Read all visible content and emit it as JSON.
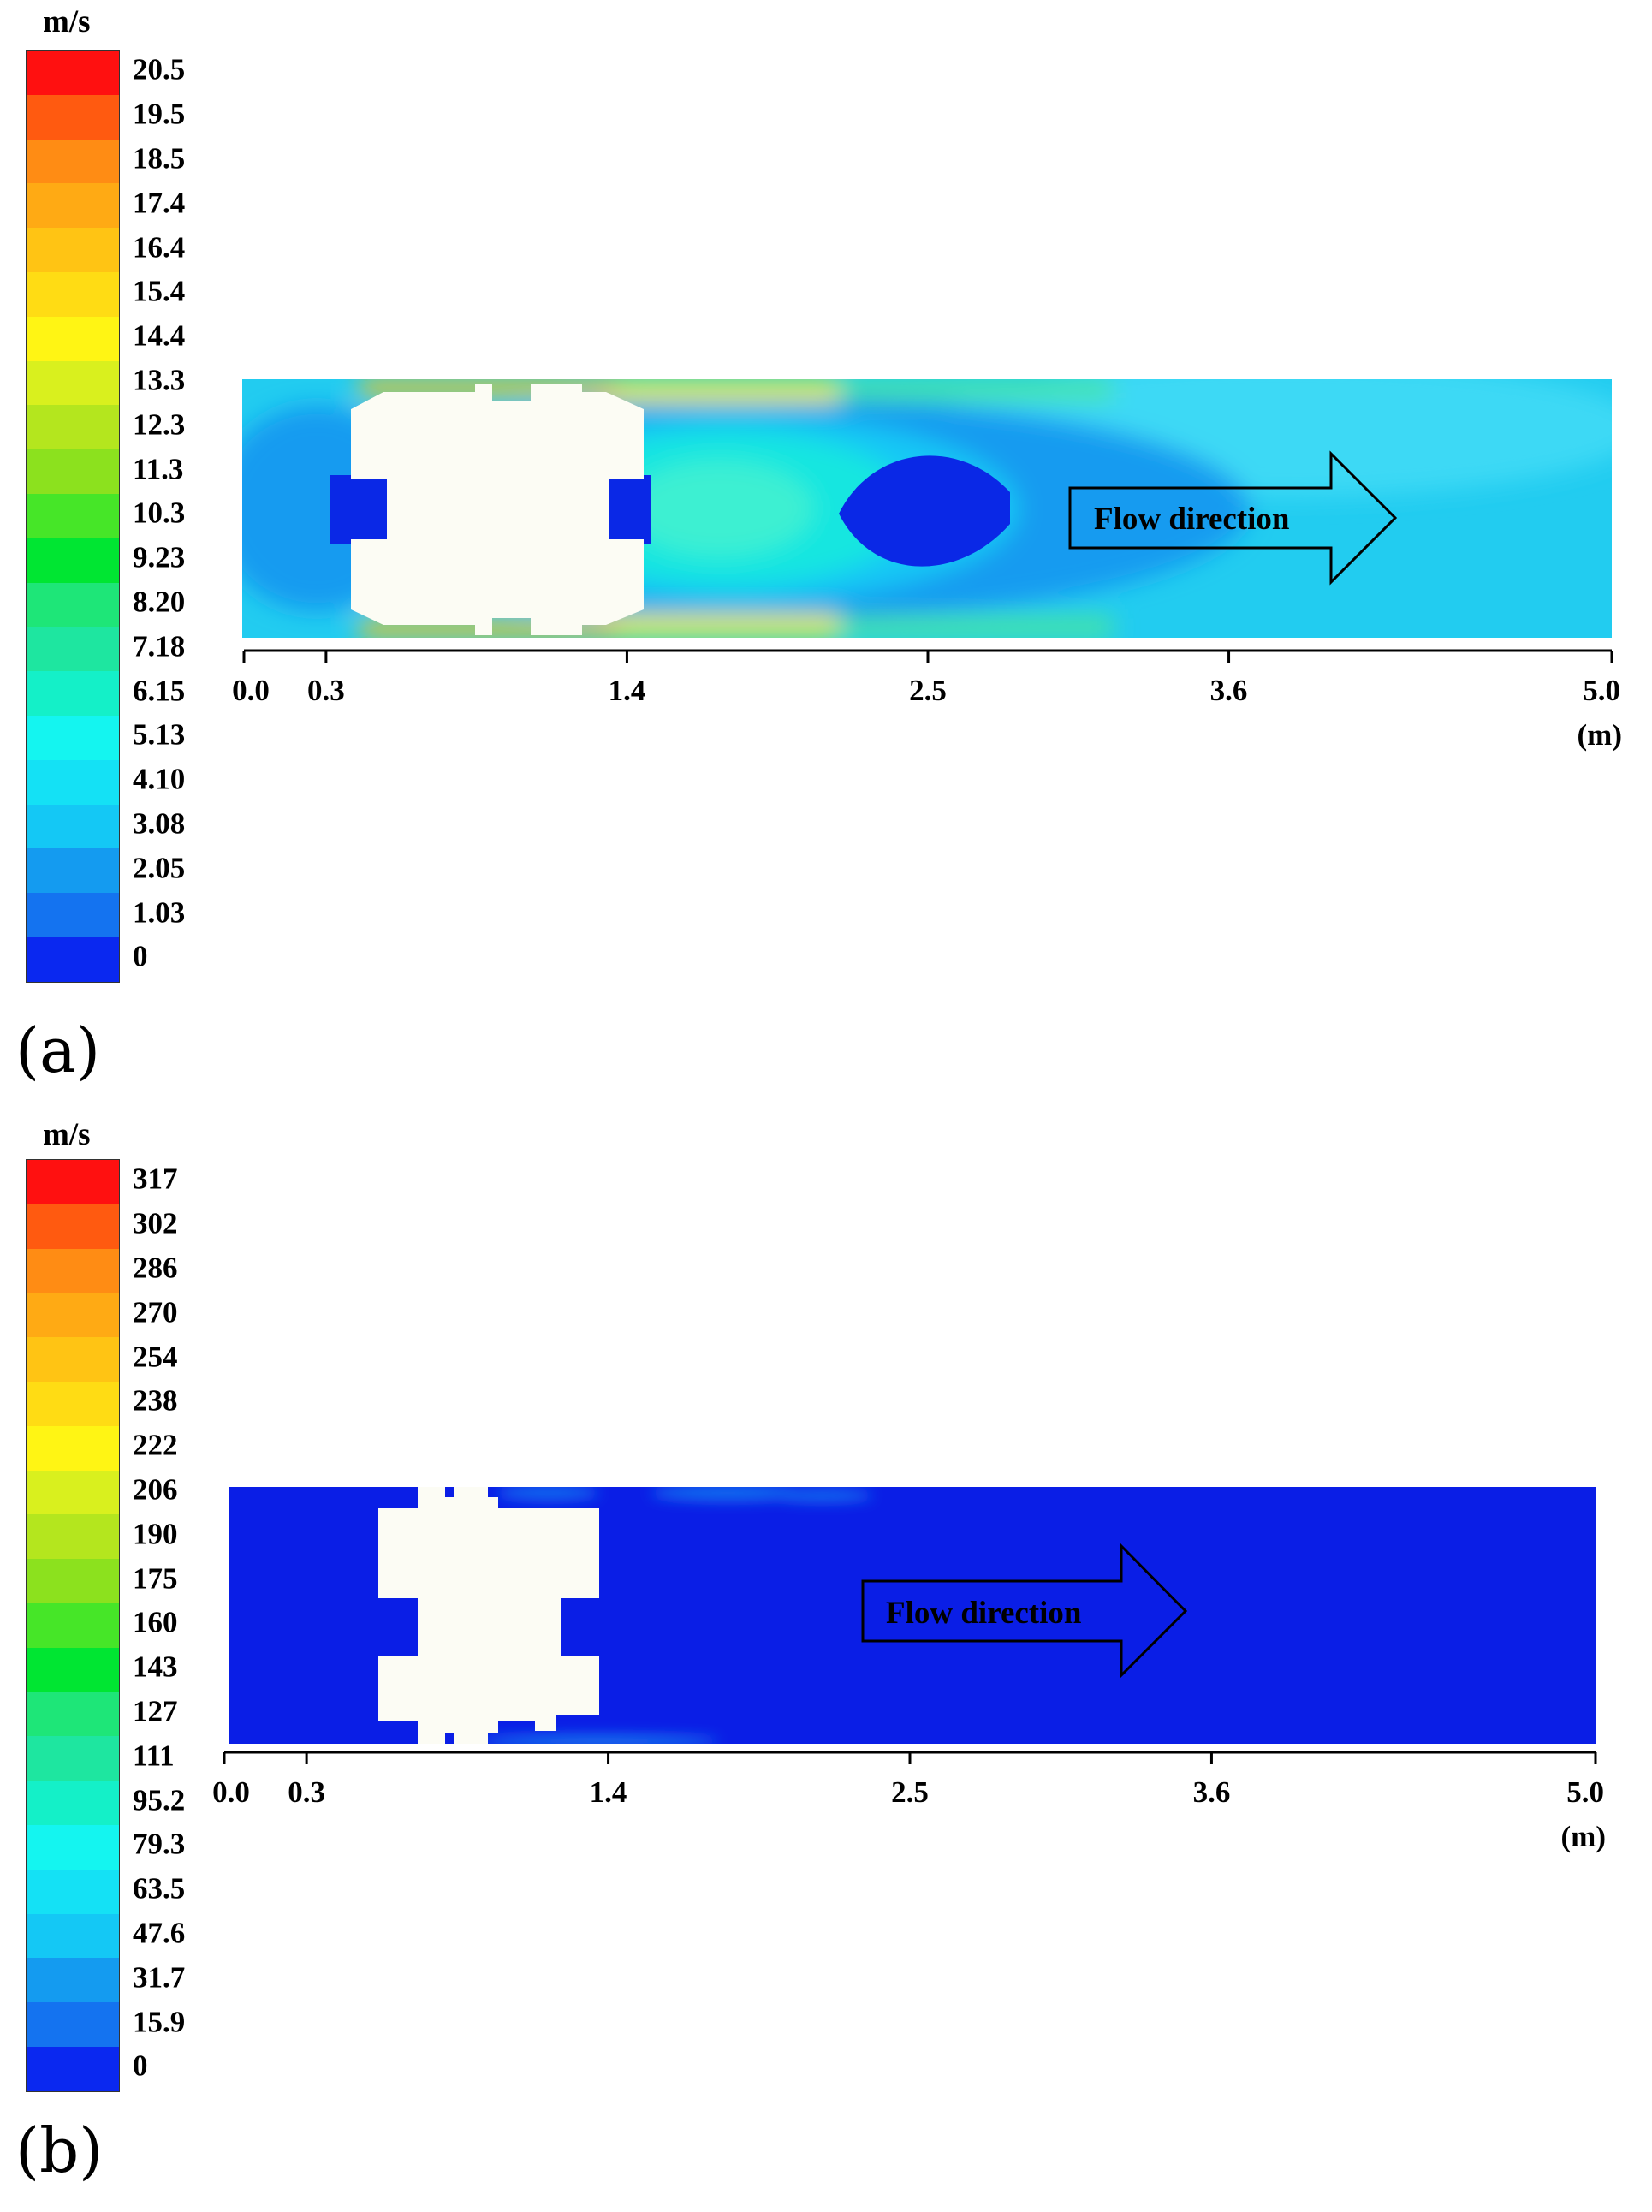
{
  "panels": [
    {
      "letter": "(a)",
      "unit": "m/s",
      "legend_values": [
        "20.5",
        "19.5",
        "18.5",
        "17.4",
        "16.4",
        "15.4",
        "14.4",
        "13.3",
        "12.3",
        "11.3",
        "10.3",
        "9.23",
        "8.20",
        "7.18",
        "6.15",
        "5.13",
        "4.10",
        "3.08",
        "2.05",
        "1.03",
        "0"
      ],
      "axis": {
        "ticks": [
          "0.0",
          "0.3",
          "1.4",
          "2.5",
          "3.6",
          "5.0"
        ],
        "unit": "(m)"
      },
      "flow_label": "Flow direction"
    },
    {
      "letter": "(b)",
      "unit": "m/s",
      "legend_values": [
        "317",
        "302",
        "286",
        "270",
        "254",
        "238",
        "222",
        "206",
        "190",
        "175",
        "160",
        "143",
        "127",
        "111",
        "95.2",
        "79.3",
        "63.5",
        "47.6",
        "31.7",
        "15.9",
        "0"
      ],
      "axis": {
        "ticks": [
          "0.0",
          "0.3",
          "1.4",
          "2.5",
          "3.6",
          "5.0"
        ],
        "unit": "(m)"
      },
      "flow_label": "Flow direction"
    }
  ],
  "colormap": [
    "#ff1010",
    "#ff5a10",
    "#ff8c14",
    "#ffaa14",
    "#ffc414",
    "#ffdc14",
    "#fff514",
    "#d9f01e",
    "#b4e61e",
    "#8ce11e",
    "#46e628",
    "#00e632",
    "#1ee678",
    "#1ee6a0",
    "#14f0c8",
    "#14f5f0",
    "#14e1f5",
    "#14c8f5",
    "#149bf0",
    "#1473f0",
    "#0a28f0"
  ],
  "colors": {
    "domain_a_background": "#22ccf0",
    "domain_b_background": "#0a1ee6",
    "obstacle": "#fcfcf4",
    "stagnation": "#0a28e6"
  }
}
